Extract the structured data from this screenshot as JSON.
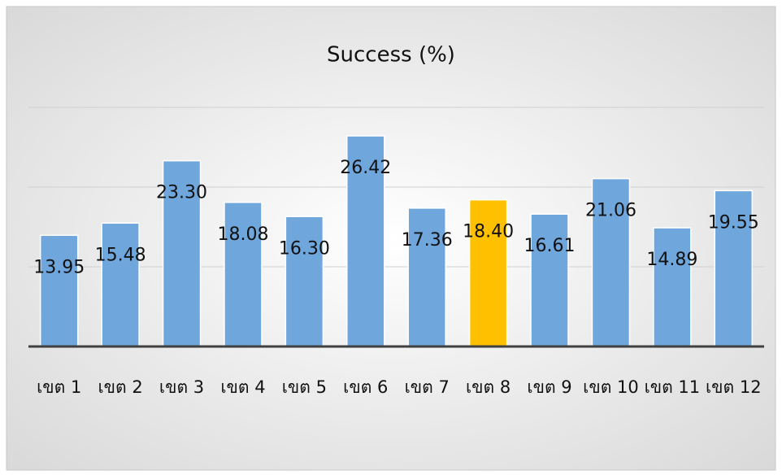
{
  "chart_data": {
    "type": "bar",
    "title": "Success (%)",
    "categories": [
      "เขต 1",
      "เขต 2",
      "เขต 3",
      "เขต 4",
      "เขต 5",
      "เขต 6",
      "เขต 7",
      "เขต 8",
      "เขต 9",
      "เขต 10",
      "เขต 11",
      "เขต 12"
    ],
    "values": [
      13.95,
      15.48,
      23.3,
      18.08,
      16.3,
      26.42,
      17.36,
      18.4,
      16.61,
      21.06,
      14.89,
      19.55
    ],
    "value_labels": [
      "13.95",
      "15.48",
      "23.30",
      "18.08",
      "16.30",
      "26.42",
      "17.36",
      "18.40",
      "16.61",
      "21.06",
      "14.89",
      "19.55"
    ],
    "colors": [
      "#6fa6dc",
      "#6fa6dc",
      "#6fa6dc",
      "#6fa6dc",
      "#6fa6dc",
      "#6fa6dc",
      "#6fa6dc",
      "#ffc000",
      "#6fa6dc",
      "#6fa6dc",
      "#6fa6dc",
      "#6fa6dc"
    ],
    "ylim": [
      0,
      30
    ],
    "yticks": [
      0,
      10,
      20,
      30
    ],
    "grid": true
  }
}
